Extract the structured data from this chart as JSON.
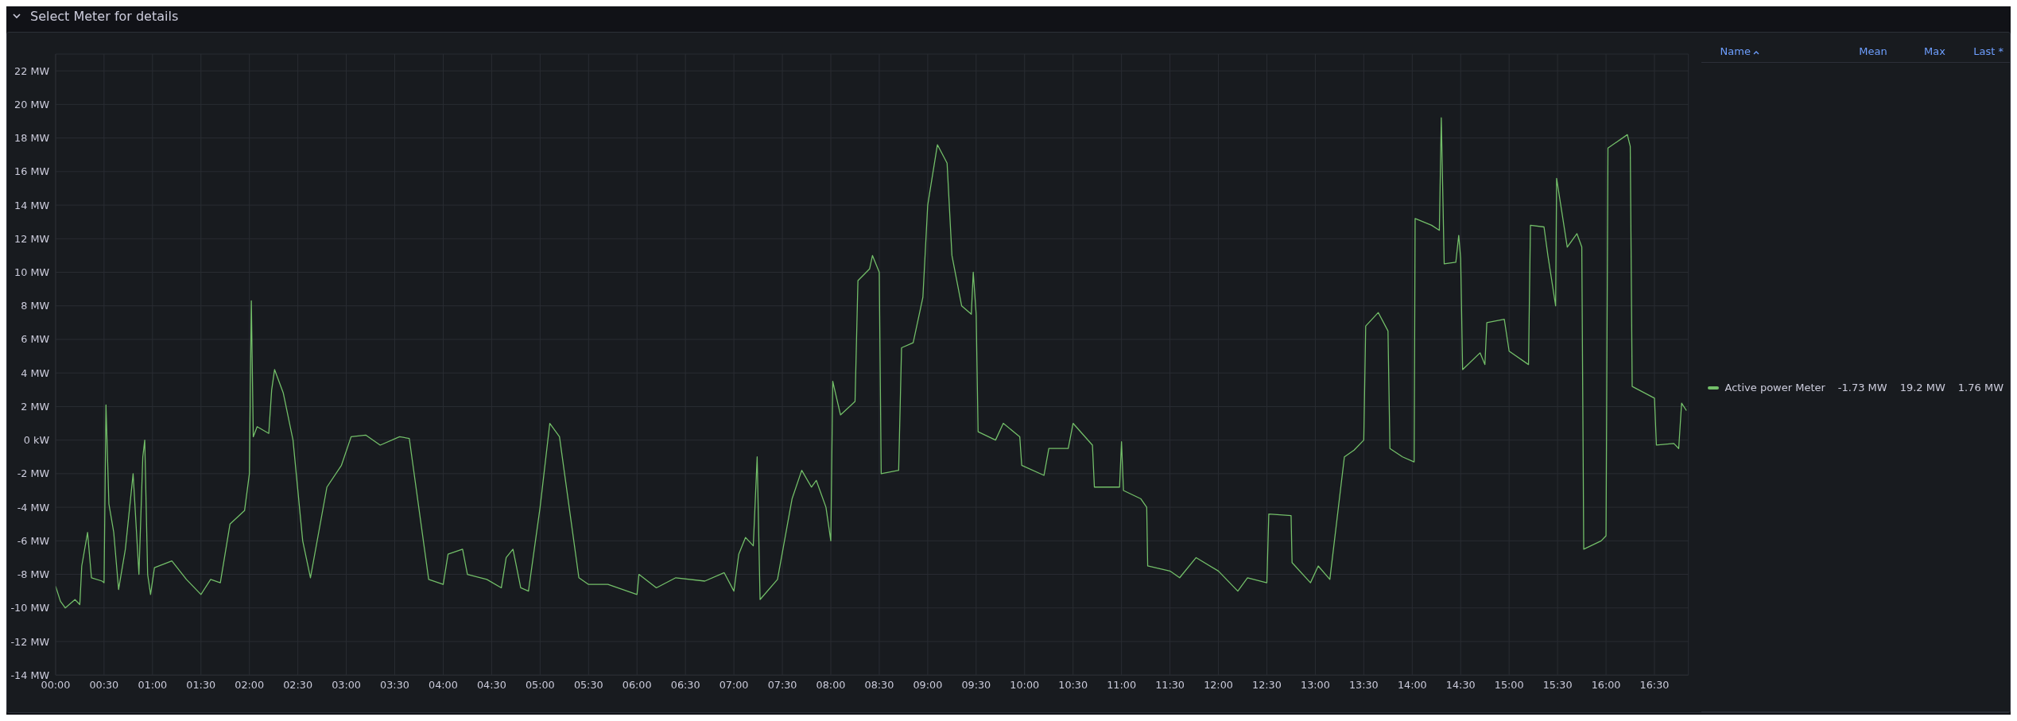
{
  "chart_data": {
    "type": "line",
    "title": "Select Meter for details",
    "x": [
      0,
      0.05,
      0.1,
      0.2,
      0.25,
      0.27,
      0.33,
      0.37,
      0.48,
      0.5,
      0.52,
      0.55,
      0.6,
      0.65,
      0.72,
      0.8,
      0.86,
      0.9,
      0.92,
      0.95,
      0.98,
      1.02,
      1.2,
      1.35,
      1.5,
      1.6,
      1.7,
      1.8,
      1.95,
      2.0,
      2.02,
      2.04,
      2.08,
      2.2,
      2.23,
      2.26,
      2.35,
      2.45,
      2.55,
      2.63,
      2.8,
      2.95,
      3.05,
      3.2,
      3.35,
      3.55,
      3.65,
      3.85,
      4.0,
      4.05,
      4.2,
      4.25,
      4.45,
      4.6,
      4.65,
      4.72,
      4.8,
      4.88,
      5.0,
      5.1,
      5.2,
      5.3,
      5.4,
      5.5,
      5.7,
      6.0,
      6.02,
      6.2,
      6.4,
      6.7,
      6.9,
      7.0,
      7.05,
      7.12,
      7.2,
      7.24,
      7.27,
      7.45,
      7.6,
      7.7,
      7.8,
      7.85,
      7.95,
      8.0,
      8.02,
      8.1,
      8.25,
      8.28,
      8.4,
      8.43,
      8.5,
      8.52,
      8.7,
      8.73,
      8.85,
      8.95,
      9.0,
      9.1,
      9.2,
      9.25,
      9.35,
      9.45,
      9.47,
      9.5,
      9.52,
      9.7,
      9.78,
      9.95,
      9.97,
      10.2,
      10.25,
      10.45,
      10.5,
      10.7,
      10.72,
      10.98,
      11.0,
      11.02,
      11.2,
      11.26,
      11.27,
      11.5,
      11.6,
      11.77,
      12.0,
      12.2,
      12.3,
      12.5,
      12.52,
      12.75,
      12.76,
      12.95,
      13.03,
      13.15,
      13.3,
      13.4,
      13.5,
      13.52,
      13.65,
      13.75,
      13.77,
      13.9,
      14.02,
      14.03,
      14.2,
      14.28,
      14.3,
      14.33,
      14.45,
      14.48,
      14.5,
      14.52,
      14.7,
      14.75,
      14.77,
      14.95,
      15.0,
      15.2,
      15.22,
      15.36,
      15.4,
      15.48,
      15.49,
      15.6,
      15.7,
      15.75,
      15.77,
      15.95,
      16.0,
      16.02,
      16.22,
      16.25,
      16.27,
      16.5,
      16.52,
      16.7,
      16.75,
      16.78,
      16.83
    ],
    "series": [
      {
        "name": "Active power Meter",
        "color": "#73bf69",
        "values": [
          -8.7,
          -9.6,
          -10.0,
          -9.5,
          -9.8,
          -7.5,
          -5.5,
          -8.2,
          -8.4,
          -8.5,
          2.1,
          -3.8,
          -5.5,
          -8.9,
          -6.5,
          -2.0,
          -8.0,
          -1.0,
          0,
          -8.0,
          -9.2,
          -7.6,
          -7.2,
          -8.3,
          -9.2,
          -8.3,
          -8.5,
          -5.0,
          -4.2,
          -2.0,
          8.3,
          0.2,
          0.8,
          0.4,
          3.0,
          4.2,
          2.8,
          0,
          -6.0,
          -8.2,
          -2.8,
          -1.5,
          0.2,
          0.3,
          -0.3,
          0.2,
          0.1,
          -8.3,
          -8.6,
          -6.8,
          -6.5,
          -8.0,
          -8.3,
          -8.8,
          -7.0,
          -6.5,
          -8.8,
          -9.0,
          -4.0,
          1.0,
          0.2,
          -4.0,
          -8.2,
          -8.6,
          -8.6,
          -9.2,
          -8.0,
          -8.8,
          -8.2,
          -8.4,
          -7.9,
          -9.0,
          -6.8,
          -5.8,
          -6.3,
          -1.0,
          -9.5,
          -8.3,
          -3.5,
          -1.8,
          -2.8,
          -2.4,
          -4.0,
          -6.0,
          3.5,
          1.5,
          2.3,
          9.5,
          10.2,
          11.0,
          10.0,
          -2.0,
          -1.8,
          5.5,
          5.8,
          8.5,
          14,
          17.6,
          16.5,
          11.0,
          8.0,
          7.5,
          10.0,
          7.5,
          0.5,
          0,
          1.0,
          0.2,
          -1.5,
          -2.1,
          -0.5,
          -0.5,
          1.0,
          -0.3,
          -2.8,
          -2.8,
          -0.1,
          -3.0,
          -3.5,
          -4.0,
          -7.5,
          -7.8,
          -8.2,
          -7.0,
          -7.8,
          -9.0,
          -8.2,
          -8.5,
          -4.4,
          -4.5,
          -7.3,
          -8.5,
          -7.5,
          -8.3,
          -1.0,
          -0.6,
          0,
          6.8,
          7.6,
          6.5,
          -0.5,
          -1.0,
          -1.3,
          13.2,
          12.8,
          12.5,
          19.2,
          10.5,
          10.6,
          12.2,
          10.8,
          4.2,
          5.2,
          4.5,
          7.0,
          7.2,
          5.3,
          4.5,
          12.8,
          12.7,
          11.0,
          8.0,
          15.6,
          11.5,
          12.3,
          11.5,
          -6.5,
          -6.0,
          -5.7,
          17.4,
          18.2,
          17.5,
          3.2,
          2.5,
          -0.3,
          -0.2,
          -0.5,
          2.2,
          1.76
        ]
      }
    ],
    "xlim": [
      0,
      16.85
    ],
    "xticks": [
      {
        "value": 0,
        "label": "00:00"
      },
      {
        "value": 0.5,
        "label": "00:30"
      },
      {
        "value": 1,
        "label": "01:00"
      },
      {
        "value": 1.5,
        "label": "01:30"
      },
      {
        "value": 2,
        "label": "02:00"
      },
      {
        "value": 2.5,
        "label": "02:30"
      },
      {
        "value": 3,
        "label": "03:00"
      },
      {
        "value": 3.5,
        "label": "03:30"
      },
      {
        "value": 4,
        "label": "04:00"
      },
      {
        "value": 4.5,
        "label": "04:30"
      },
      {
        "value": 5,
        "label": "05:00"
      },
      {
        "value": 5.5,
        "label": "05:30"
      },
      {
        "value": 6,
        "label": "06:00"
      },
      {
        "value": 6.5,
        "label": "06:30"
      },
      {
        "value": 7,
        "label": "07:00"
      },
      {
        "value": 7.5,
        "label": "07:30"
      },
      {
        "value": 8,
        "label": "08:00"
      },
      {
        "value": 8.5,
        "label": "08:30"
      },
      {
        "value": 9,
        "label": "09:00"
      },
      {
        "value": 9.5,
        "label": "09:30"
      },
      {
        "value": 10,
        "label": "10:00"
      },
      {
        "value": 10.5,
        "label": "10:30"
      },
      {
        "value": 11,
        "label": "11:00"
      },
      {
        "value": 11.5,
        "label": "11:30"
      },
      {
        "value": 12,
        "label": "12:00"
      },
      {
        "value": 12.5,
        "label": "12:30"
      },
      {
        "value": 13,
        "label": "13:00"
      },
      {
        "value": 13.5,
        "label": "13:30"
      },
      {
        "value": 14,
        "label": "14:00"
      },
      {
        "value": 14.5,
        "label": "14:30"
      },
      {
        "value": 15,
        "label": "15:00"
      },
      {
        "value": 15.5,
        "label": "15:30"
      },
      {
        "value": 16,
        "label": "16:00"
      },
      {
        "value": 16.5,
        "label": "16:30"
      }
    ],
    "ylim": [
      -14,
      23
    ],
    "yticks": [
      {
        "value": -14,
        "label": "-14 MW"
      },
      {
        "value": -12,
        "label": "-12 MW"
      },
      {
        "value": -10,
        "label": "-10 MW"
      },
      {
        "value": -8,
        "label": "-8 MW"
      },
      {
        "value": -6,
        "label": "-6 MW"
      },
      {
        "value": -4,
        "label": "-4 MW"
      },
      {
        "value": -2,
        "label": "-2 MW"
      },
      {
        "value": 0,
        "label": "0 kW"
      },
      {
        "value": 2,
        "label": "2 MW"
      },
      {
        "value": 4,
        "label": "4 MW"
      },
      {
        "value": 6,
        "label": "6 MW"
      },
      {
        "value": 8,
        "label": "8 MW"
      },
      {
        "value": 10,
        "label": "10 MW"
      },
      {
        "value": 12,
        "label": "12 MW"
      },
      {
        "value": 14,
        "label": "14 MW"
      },
      {
        "value": 16,
        "label": "16 MW"
      },
      {
        "value": 18,
        "label": "18 MW"
      },
      {
        "value": 20,
        "label": "20 MW"
      },
      {
        "value": 22,
        "label": "22 MW"
      }
    ],
    "grid": true,
    "legend": "right",
    "marker": "none",
    "line_style": "solid",
    "annotations": [
      "Name",
      "Mean",
      "Max",
      "Last *",
      "-1.73 MW",
      "19.2 MW",
      "1.76 MW"
    ]
  }
}
